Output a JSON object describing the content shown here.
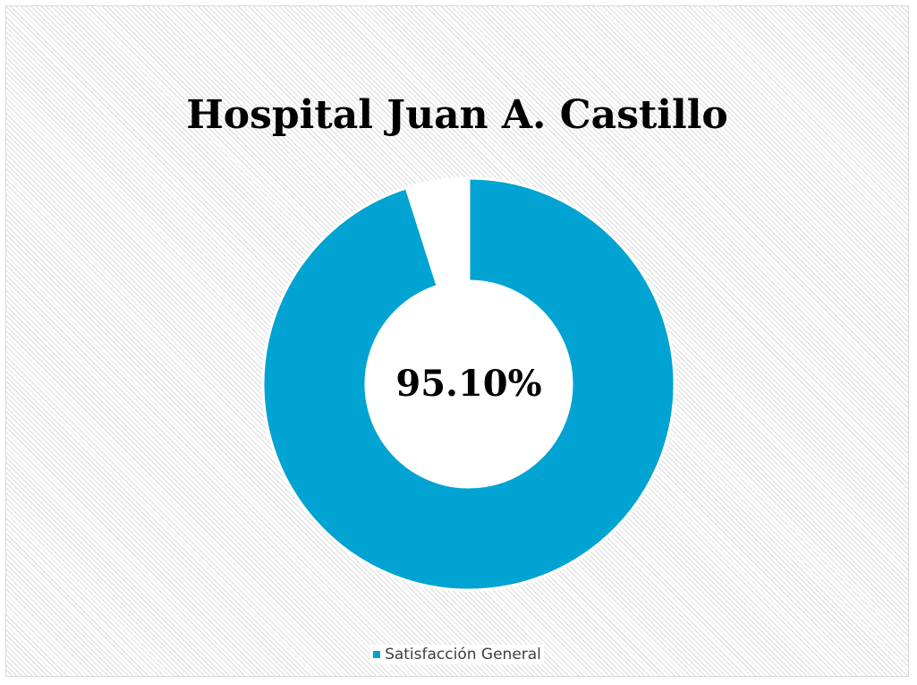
{
  "chart_data": {
    "type": "pie",
    "title": "Hospital Juan A. Castillo",
    "center_label": "95.10%",
    "slices": [
      {
        "name": "Satisfacción General",
        "value": 95.1,
        "color": "#00A3D1",
        "in_legend": true
      },
      {
        "name": "",
        "value": 4.9,
        "color": "#FFFFFF",
        "in_legend": false
      }
    ],
    "legend": {
      "position": "bottom",
      "entries": [
        "Satisfacción General"
      ]
    },
    "hole": 0.5
  },
  "colors": {
    "primary": "#00A3D1",
    "remainder": "#FFFFFF",
    "background_pattern": "#DCDCDC"
  }
}
